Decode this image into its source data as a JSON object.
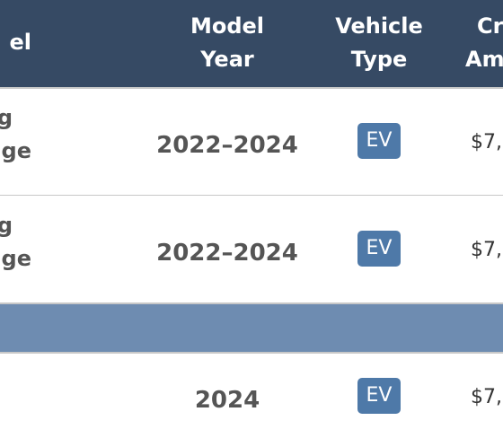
{
  "table": {
    "headers": {
      "model": "el",
      "model_year": [
        "Model",
        "Year"
      ],
      "vehicle_type": [
        "Vehicle",
        "Type"
      ],
      "credit_amount": [
        "Cr",
        "Am"
      ]
    },
    "rows": [
      {
        "model_lines": [
          "g",
          "ge"
        ],
        "year": "2022–2024",
        "type": "EV",
        "amount": "$7,"
      },
      {
        "model_lines": [
          "g",
          "ge"
        ],
        "year": "2022–2024",
        "type": "EV",
        "amount": "$7,"
      },
      {
        "model_lines": [],
        "year": "2024",
        "type": "EV",
        "amount": "$7,"
      }
    ]
  }
}
